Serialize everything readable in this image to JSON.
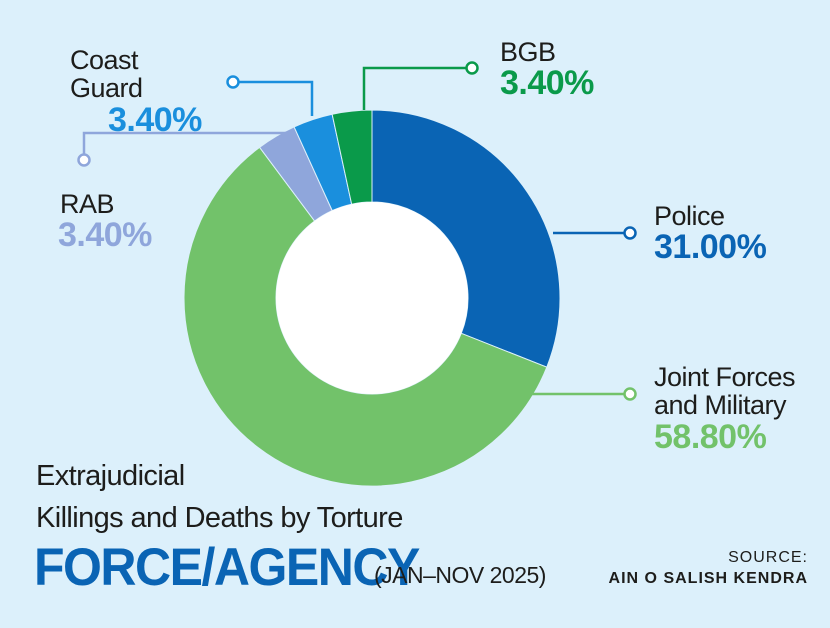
{
  "chart_data": {
    "type": "pie",
    "style": "donut",
    "title_line1": "Extrajudicial",
    "title_line2": "Killings and Deaths by Torture",
    "heading": "FORCE/AGENCY",
    "period": "(JAN–NOV 2025)",
    "source_label": "SOURCE:",
    "source_org": "AIN O SALISH KENDRA",
    "slices": [
      {
        "name": "Police",
        "value": 31.0,
        "label": "31.00%",
        "color": "#0a64b4"
      },
      {
        "name_line1": "Joint Forces",
        "name_line2": "and Military",
        "value": 58.8,
        "label": "58.80%",
        "color": "#72c26a"
      },
      {
        "name": "RAB",
        "value": 3.4,
        "label": "3.40%",
        "color": "#8fa6db"
      },
      {
        "name": "Coast Guard",
        "value": 3.4,
        "label": "3.40%",
        "color": "#1a8fdd"
      },
      {
        "name": "BGB",
        "value": 3.4,
        "label": "3.40%",
        "color": "#0a9a4a"
      }
    ],
    "label_colors": {
      "Police": "#0a64b4",
      "Joint Forces and Military": "#72c26a",
      "RAB": "#8fa6db",
      "Coast Guard": "#1a8fdd",
      "BGB": "#0a9a4a"
    }
  }
}
